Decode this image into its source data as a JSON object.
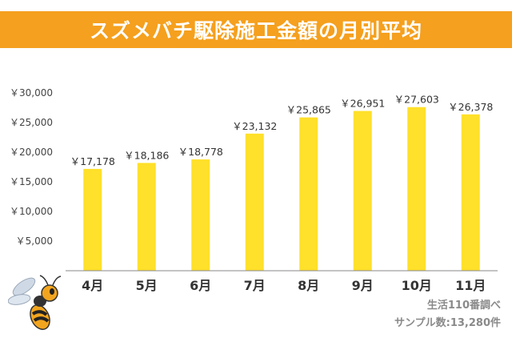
{
  "title": "スズメバチ駆除施工金額の月別平均",
  "source_line1": "生活110番調べ",
  "source_line2": "サンプル数:13,280件",
  "colors": {
    "banner": "#f5a01e",
    "bar": "#ffe02a",
    "axis": "#888888"
  },
  "icons": {
    "mascot": "hornet-icon"
  },
  "chart_data": {
    "type": "bar",
    "title": "スズメバチ駆除施工金額の月別平均",
    "xlabel": "",
    "ylabel": "",
    "ylim": [
      0,
      30000
    ],
    "yticks": [
      {
        "value": 5000,
        "label": "￥5,000"
      },
      {
        "value": 10000,
        "label": "￥10,000"
      },
      {
        "value": 15000,
        "label": "￥15,000"
      },
      {
        "value": 20000,
        "label": "￥20,000"
      },
      {
        "value": 25000,
        "label": "￥25,000"
      },
      {
        "value": 30000,
        "label": "￥30,000"
      }
    ],
    "categories": [
      "4月",
      "5月",
      "6月",
      "7月",
      "8月",
      "9月",
      "10月",
      "11月"
    ],
    "values": [
      17178,
      18186,
      18778,
      23132,
      25865,
      26951,
      27603,
      26378
    ],
    "data_labels": [
      "￥17,178",
      "￥18,186",
      "￥18,778",
      "￥23,132",
      "￥25,865",
      "￥26,951",
      "￥27,603",
      "￥26,378"
    ],
    "grid": false,
    "legend": "none"
  }
}
